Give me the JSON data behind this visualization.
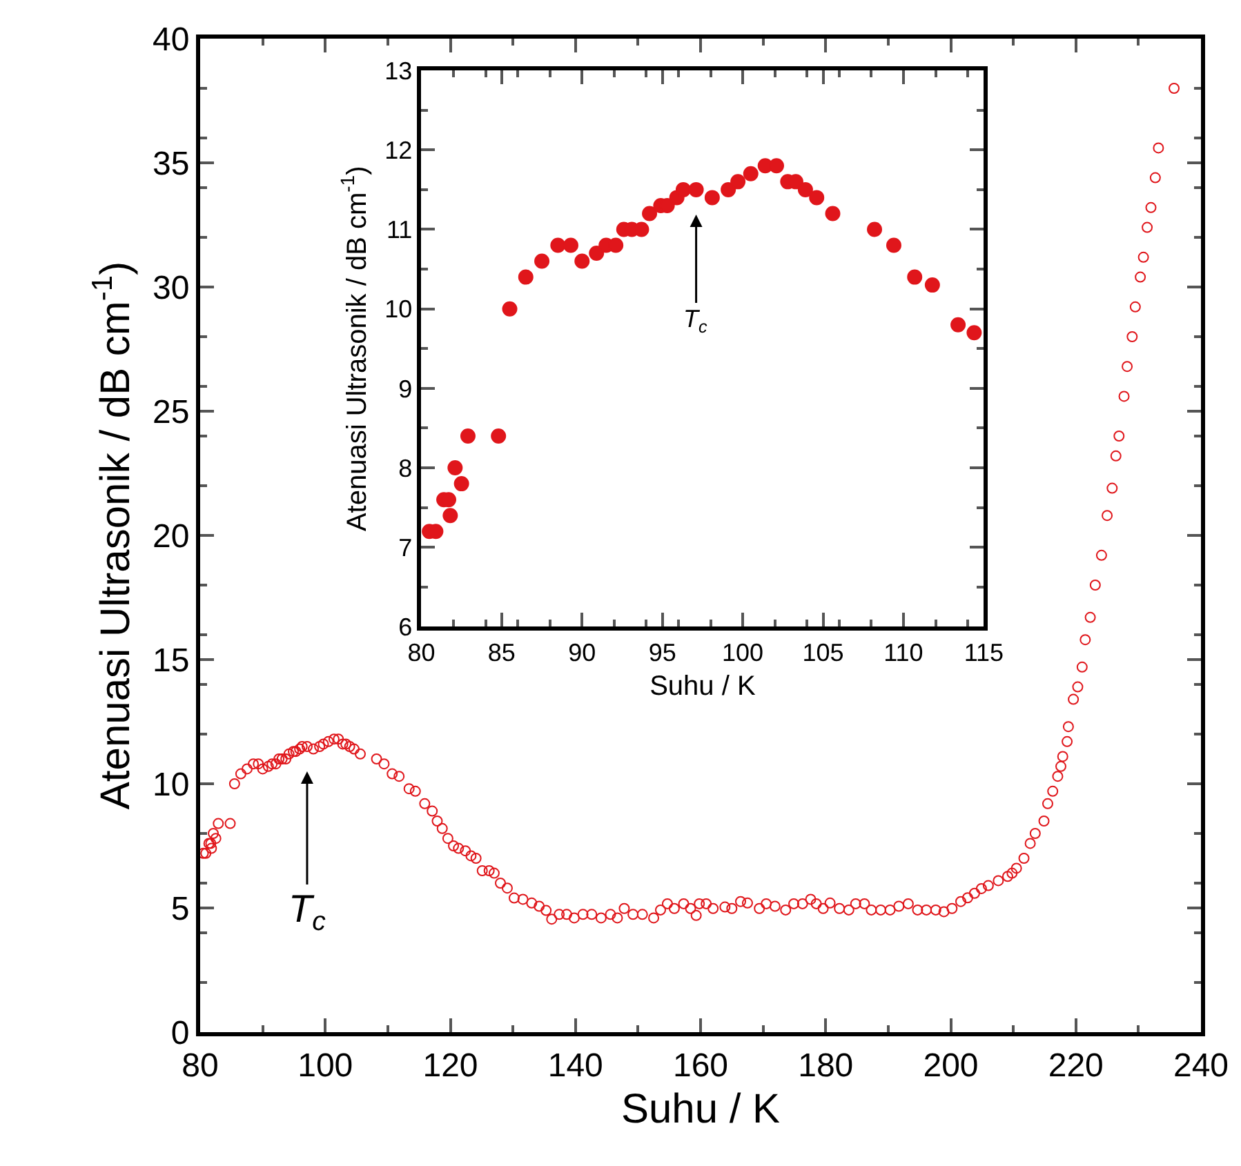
{
  "chart_data": [
    {
      "type": "scatter",
      "xlabel": "Suhu / K",
      "ylabel": "Atenuasi Ultrasonik / dB cm$^{-1}$)",
      "xlim": [
        80,
        240
      ],
      "ylim": [
        0,
        40
      ],
      "xticks": [
        80,
        100,
        120,
        140,
        160,
        180,
        200,
        220,
        240
      ],
      "yticks": [
        0,
        5,
        10,
        15,
        20,
        25,
        30,
        35,
        40
      ],
      "marker": "circle",
      "annotations": [
        {
          "text": "T$_{c}$",
          "x": 97.1,
          "y": 11.5
        }
      ],
      "series": [
        {
          "color": "#e0161b",
          "x": [
            80.5,
            80.9,
            81.4,
            81.7,
            81.8,
            82.1,
            82.5,
            82.9,
            84.8,
            85.5,
            86.5,
            87.5,
            88.5,
            89.3,
            90.0,
            90.9,
            91.5,
            92.1,
            92.6,
            93.1,
            93.7,
            94.2,
            94.9,
            95.3,
            95.9,
            96.3,
            97.1,
            98.1,
            99.1,
            99.7,
            100.5,
            101.4,
            102.1,
            102.8,
            103.3,
            103.9,
            104.6,
            105.6,
            108.2,
            109.4,
            110.7,
            111.8,
            113.4,
            114.4,
            115.9,
            117.1,
            117.9,
            118.7,
            119.6,
            120.5,
            121.3,
            122.4,
            123.3,
            124.1,
            125.1,
            126.2,
            127.0,
            128.0,
            129.1,
            130.2,
            131.6,
            133.0,
            134.2,
            135.3,
            136.2,
            137.4,
            138.6,
            139.8,
            141.2,
            142.6,
            144.1,
            145.6,
            146.7,
            147.8,
            149.2,
            150.7,
            152.5,
            153.6,
            154.7,
            155.8,
            157.3,
            158.4,
            159.3,
            159.8,
            160.9,
            162.0,
            163.9,
            165.0,
            166.4,
            167.5,
            169.4,
            170.5,
            171.9,
            173.6,
            174.9,
            176.3,
            177.6,
            178.5,
            179.6,
            180.7,
            182.2,
            183.7,
            184.8,
            186.2,
            187.3,
            188.8,
            190.3,
            191.7,
            193.2,
            194.7,
            196.1,
            197.6,
            198.9,
            200.2,
            201.6,
            202.7,
            203.8,
            204.9,
            206.0,
            207.6,
            209.1,
            209.8,
            210.5,
            211.7,
            212.7,
            213.5,
            214.9,
            215.5,
            216.3,
            217.1,
            217.6,
            217.9,
            218.6,
            218.8,
            219.6,
            220.3,
            221.0,
            221.5,
            222.3,
            223.1,
            224.1,
            225.0,
            225.8,
            226.4,
            226.9,
            227.7,
            228.2,
            229.0,
            229.5,
            230.3,
            230.8,
            231.4,
            232.0,
            232.7,
            233.2,
            235.7
          ],
          "values": [
            7.2,
            7.2,
            7.6,
            7.6,
            7.4,
            8.0,
            7.8,
            8.4,
            8.4,
            10.0,
            10.4,
            10.6,
            10.8,
            10.8,
            10.6,
            10.7,
            10.8,
            10.8,
            11.0,
            11.0,
            11.0,
            11.2,
            11.3,
            11.3,
            11.4,
            11.5,
            11.5,
            11.4,
            11.5,
            11.6,
            11.7,
            11.8,
            11.8,
            11.6,
            11.6,
            11.5,
            11.4,
            11.2,
            11.0,
            10.8,
            10.4,
            10.3,
            9.8,
            9.7,
            9.2,
            8.9,
            8.5,
            8.2,
            7.8,
            7.5,
            7.4,
            7.3,
            7.1,
            7.0,
            6.5,
            6.5,
            6.4,
            6.0,
            5.8,
            5.4,
            5.35,
            5.2,
            5.07,
            4.9,
            4.55,
            4.74,
            4.74,
            4.6,
            4.74,
            4.74,
            4.6,
            4.74,
            4.6,
            4.98,
            4.74,
            4.74,
            4.6,
            4.92,
            5.17,
            4.98,
            5.17,
            4.98,
            4.7,
            5.17,
            5.17,
            4.98,
            5.04,
            4.98,
            5.26,
            5.2,
            4.98,
            5.17,
            5.07,
            4.92,
            5.17,
            5.17,
            5.35,
            5.17,
            4.98,
            5.2,
            4.98,
            4.92,
            5.17,
            5.17,
            4.92,
            4.92,
            4.92,
            5.07,
            5.17,
            4.92,
            4.92,
            4.92,
            4.85,
            4.98,
            5.26,
            5.41,
            5.59,
            5.78,
            5.9,
            6.1,
            6.27,
            6.4,
            6.6,
            7.0,
            7.6,
            8.0,
            8.5,
            9.2,
            9.7,
            10.3,
            10.7,
            11.1,
            11.7,
            12.3,
            13.4,
            13.9,
            14.7,
            15.8,
            16.7,
            18.0,
            19.2,
            20.8,
            21.9,
            23.2,
            24.0,
            25.6,
            26.8,
            28.0,
            29.2,
            30.4,
            31.2,
            32.4,
            33.2,
            34.4,
            35.6,
            38.0
          ]
        }
      ]
    },
    {
      "type": "scatter",
      "xlabel": "Suhu / K",
      "ylabel": "Atenuasi Ultrasonik / dB cm$^{-1}$)",
      "xlim": [
        80,
        115
      ],
      "ylim": [
        6,
        13
      ],
      "xticks": [
        80,
        85,
        90,
        95,
        100,
        105,
        110,
        115
      ],
      "yticks": [
        6,
        7,
        8,
        9,
        10,
        11,
        12,
        13
      ],
      "marker": "circle",
      "annotations": [
        {
          "text": "T$_{c}$",
          "x": 97.1,
          "y": 11.5
        }
      ],
      "series": [
        {
          "color": "#e0161b",
          "x": [
            80.5,
            80.9,
            81.4,
            81.7,
            81.8,
            82.1,
            82.5,
            82.9,
            84.8,
            85.5,
            86.5,
            87.5,
            88.5,
            89.3,
            90.0,
            90.9,
            91.5,
            92.1,
            92.6,
            93.1,
            93.7,
            94.2,
            94.9,
            95.3,
            95.9,
            96.3,
            97.1,
            98.1,
            99.1,
            99.7,
            100.5,
            101.4,
            102.1,
            102.8,
            103.3,
            103.9,
            104.6,
            105.6,
            108.2,
            109.4,
            110.7,
            111.8,
            113.4,
            114.4
          ],
          "values": [
            7.2,
            7.2,
            7.6,
            7.6,
            7.4,
            8.0,
            7.8,
            8.4,
            8.4,
            10.0,
            10.4,
            10.6,
            10.8,
            10.8,
            10.6,
            10.7,
            10.8,
            10.8,
            11.0,
            11.0,
            11.0,
            11.2,
            11.3,
            11.3,
            11.4,
            11.5,
            11.5,
            11.4,
            11.5,
            11.6,
            11.7,
            11.8,
            11.8,
            11.6,
            11.6,
            11.5,
            11.4,
            11.2,
            11.0,
            10.8,
            10.4,
            10.3,
            9.8,
            9.7
          ]
        }
      ]
    }
  ]
}
